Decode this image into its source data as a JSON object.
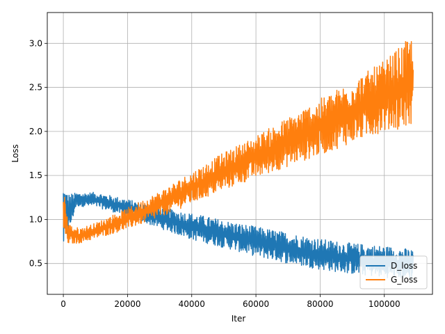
{
  "chart_data": {
    "type": "line",
    "title": "",
    "xlabel": "Iter",
    "ylabel": "Loss",
    "xlim": [
      -5000,
      115000
    ],
    "ylim": [
      0.15,
      3.35
    ],
    "x_ticks": [
      0,
      20000,
      40000,
      60000,
      80000,
      100000
    ],
    "x_tick_labels": [
      "0",
      "20000",
      "40000",
      "60000",
      "80000",
      "100000"
    ],
    "y_ticks": [
      0.5,
      1.0,
      1.5,
      2.0,
      2.5,
      3.0
    ],
    "y_tick_labels": [
      "0.5",
      "1.0",
      "1.5",
      "2.0",
      "2.5",
      "3.0"
    ],
    "grid": true,
    "legend_position": "lower-right",
    "x_end": 109000,
    "series": [
      {
        "name": "D_loss",
        "color": "#1f77b4",
        "envelope": [
          {
            "x": 0,
            "low": 0.64,
            "high": 1.42
          },
          {
            "x": 1500,
            "low": 0.8,
            "high": 1.3
          },
          {
            "x": 4000,
            "low": 1.15,
            "high": 1.3
          },
          {
            "x": 10000,
            "low": 1.14,
            "high": 1.31
          },
          {
            "x": 15000,
            "low": 1.09,
            "high": 1.27
          },
          {
            "x": 20000,
            "low": 1.03,
            "high": 1.23
          },
          {
            "x": 30000,
            "low": 0.9,
            "high": 1.14
          },
          {
            "x": 40000,
            "low": 0.77,
            "high": 1.07
          },
          {
            "x": 50000,
            "low": 0.68,
            "high": 0.99
          },
          {
            "x": 60000,
            "low": 0.58,
            "high": 0.92
          },
          {
            "x": 70000,
            "low": 0.5,
            "high": 0.85
          },
          {
            "x": 80000,
            "low": 0.43,
            "high": 0.78
          },
          {
            "x": 90000,
            "low": 0.38,
            "high": 0.73
          },
          {
            "x": 100000,
            "low": 0.34,
            "high": 0.7
          },
          {
            "x": 109000,
            "low": 0.32,
            "high": 0.66
          }
        ]
      },
      {
        "name": "G_loss",
        "color": "#ff7f0e",
        "envelope": [
          {
            "x": 0,
            "low": 0.8,
            "high": 1.48
          },
          {
            "x": 1500,
            "low": 0.72,
            "high": 0.95
          },
          {
            "x": 5000,
            "low": 0.73,
            "high": 0.9
          },
          {
            "x": 10000,
            "low": 0.78,
            "high": 0.96
          },
          {
            "x": 20000,
            "low": 0.89,
            "high": 1.13
          },
          {
            "x": 30000,
            "low": 1.02,
            "high": 1.32
          },
          {
            "x": 40000,
            "low": 1.18,
            "high": 1.54
          },
          {
            "x": 50000,
            "low": 1.33,
            "high": 1.76
          },
          {
            "x": 60000,
            "low": 1.47,
            "high": 1.95
          },
          {
            "x": 70000,
            "low": 1.6,
            "high": 2.16
          },
          {
            "x": 80000,
            "low": 1.73,
            "high": 2.37
          },
          {
            "x": 90000,
            "low": 1.87,
            "high": 2.58
          },
          {
            "x": 100000,
            "low": 2.0,
            "high": 2.8
          },
          {
            "x": 109000,
            "low": 2.05,
            "high": 3.1
          }
        ]
      }
    ]
  }
}
